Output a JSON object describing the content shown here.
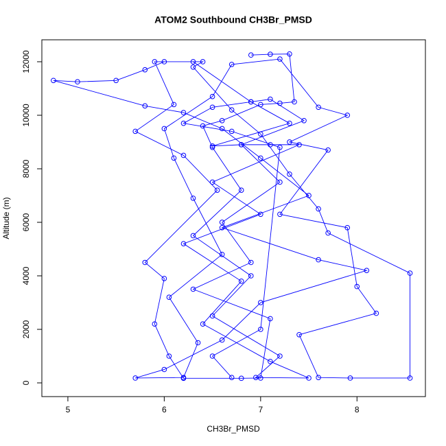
{
  "chart_data": {
    "type": "line",
    "title": "ATOM2 Southbound CH3Br_PMSD",
    "x_label": "CH3Br_PMSD",
    "y_label": "Altitude (m)",
    "color": "#0000ff",
    "marker": "circle",
    "x": [
      6.9,
      7.1,
      7.3,
      7.35,
      7.2,
      7.0,
      6.6,
      6.4,
      6.5,
      6.8,
      6.3,
      6.9,
      6.5,
      7.2,
      6.95,
      7.5,
      7.1,
      6.4,
      6.8,
      6.2,
      7.0,
      6.5,
      7.4,
      7.1,
      6.8,
      6.5,
      7.3,
      6.9,
      6.3,
      6.0,
      5.8,
      5.5,
      5.1,
      4.85,
      5.8,
      6.2,
      6.6,
      7.0,
      7.5,
      6.6,
      7.6,
      8.1,
      7.0,
      6.6,
      6.0,
      5.7,
      6.2,
      6.35,
      6.05,
      6.6,
      6.3,
      6.1,
      6.0,
      6.5,
      6.7,
      7.2,
      7.6,
      7.9,
      7.3,
      7.7,
      7.2,
      7.9,
      8.0,
      8.2,
      7.4,
      7.6,
      7.93,
      8.55,
      8.55,
      7.7,
      7.6,
      7.3,
      7.0,
      6.7,
      6.3,
      6.4,
      5.9,
      6.1,
      5.7,
      6.2,
      6.55,
      5.8,
      6.0,
      5.9,
      6.05,
      6.2,
      6.8,
      7.0,
      7.1,
      6.3,
      6.9,
      6.6,
      7.2,
      6.8,
      7.45,
      7.1,
      6.9,
      6.5,
      6.2,
      6.7,
      7.2,
      7.0,
      6.5,
      6.7
    ],
    "values": [
      12250,
      12280,
      12290,
      10500,
      10450,
      10400,
      9800,
      9600,
      8800,
      7200,
      5500,
      4000,
      2500,
      1000,
      200,
      180,
      800,
      2200,
      3800,
      5200,
      6300,
      7500,
      8900,
      8900,
      8900,
      8850,
      9700,
      10500,
      12000,
      12000,
      11700,
      11300,
      11250,
      11300,
      10350,
      10100,
      9500,
      8400,
      7000,
      5800,
      4600,
      4200,
      3000,
      1600,
      500,
      180,
      200,
      1500,
      3200,
      4800,
      6900,
      8400,
      9500,
      10700,
      11900,
      12100,
      10300,
      10000,
      9000,
      8700,
      6300,
      5800,
      3600,
      2600,
      1800,
      200,
      180,
      180,
      4100,
      5600,
      6500,
      7800,
      9300,
      10200,
      11800,
      12000,
      12000,
      10400,
      9400,
      8500,
      7200,
      4500,
      3900,
      2200,
      1000,
      170,
      170,
      180,
      2400,
      3500,
      4500,
      6000,
      7500,
      8900,
      9800,
      10600,
      10500,
      10300,
      9700,
      9400,
      8800,
      2000,
      1000,
      200
    ],
    "xlim": [
      4.73,
      8.71
    ],
    "ylim": [
      -513,
      12820
    ],
    "xticks": [
      5,
      6,
      7,
      8
    ],
    "yticks": [
      0,
      2000,
      4000,
      6000,
      8000,
      10000,
      12000
    ]
  }
}
